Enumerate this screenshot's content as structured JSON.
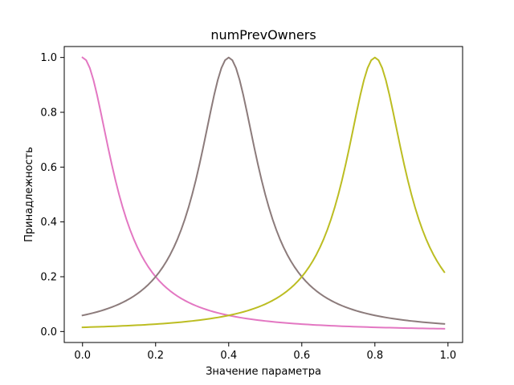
{
  "chart_data": {
    "type": "line",
    "title": "numPrevOwners",
    "xlabel": "Значение параметра",
    "ylabel": "Принадлежность",
    "xlim": [
      -0.05,
      1.04
    ],
    "ylim": [
      -0.04,
      1.04
    ],
    "xticks": [
      0.0,
      0.2,
      0.4,
      0.6,
      0.8,
      1.0
    ],
    "xtick_labels": [
      "0.0",
      "0.2",
      "0.4",
      "0.6",
      "0.8",
      "1.0"
    ],
    "yticks": [
      0.0,
      0.2,
      0.4,
      0.6,
      0.8,
      1.0
    ],
    "ytick_labels": [
      "0.0",
      "0.2",
      "0.4",
      "0.6",
      "0.8",
      "1.0"
    ],
    "grid": false,
    "legend": "none",
    "x_range": [
      0.0,
      0.99
    ],
    "x_step": 0.01,
    "series": [
      {
        "shape": "generalized-bell",
        "center": 0.0,
        "half_width": 0.1,
        "slope": 1,
        "color": "#e377c2",
        "samples": {
          "x": [
            0.0,
            0.1,
            0.2,
            0.4,
            0.6,
            0.8,
            0.99
          ],
          "y": [
            1.0,
            0.5,
            0.2,
            0.059,
            0.027,
            0.015,
            0.01
          ]
        }
      },
      {
        "shape": "generalized-bell",
        "center": 0.4,
        "half_width": 0.1,
        "slope": 1,
        "color": "#8c7b7b",
        "samples": {
          "x": [
            0.0,
            0.2,
            0.3,
            0.4,
            0.5,
            0.6,
            0.99
          ],
          "y": [
            0.059,
            0.2,
            0.5,
            1.0,
            0.5,
            0.2,
            0.028
          ]
        }
      },
      {
        "shape": "generalized-bell",
        "center": 0.8,
        "half_width": 0.1,
        "slope": 1,
        "color": "#bcbd22",
        "samples": {
          "x": [
            0.0,
            0.4,
            0.6,
            0.7,
            0.8,
            0.9,
            0.99
          ],
          "y": [
            0.015,
            0.059,
            0.2,
            0.5,
            1.0,
            0.5,
            0.217
          ]
        }
      }
    ]
  }
}
